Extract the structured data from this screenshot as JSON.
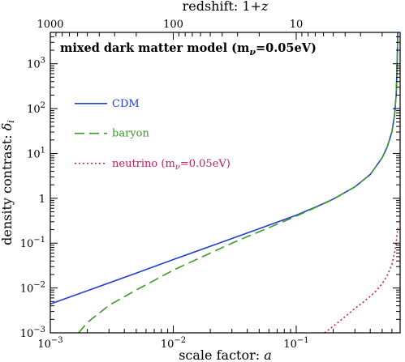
{
  "chart_data": {
    "type": "line",
    "title": "",
    "annotation": "mixed dark matter model (m",
    "annotation_sub": "ν",
    "annotation_tail": "=0.05eV)",
    "xlabel": "scale factor: ",
    "xlabel_var": "a",
    "ylabel": "density contrast: ",
    "ylabel_var": "δ",
    "ylabel_sub": "i",
    "top_xlabel": "redshift: 1+",
    "top_xlabel_var": "z",
    "xscale": "log",
    "yscale": "log",
    "xlim": [
      0.001,
      0.7
    ],
    "ylim": [
      0.001,
      5000
    ],
    "x_ticks": [
      {
        "value": 0.001,
        "base": "10",
        "exp": "−3"
      },
      {
        "value": 0.01,
        "base": "10",
        "exp": "−2"
      },
      {
        "value": 0.1,
        "base": "10",
        "exp": "−1"
      }
    ],
    "y_ticks": [
      {
        "value": 0.001,
        "base": "10",
        "exp": "−3"
      },
      {
        "value": 0.01,
        "base": "10",
        "exp": "−2"
      },
      {
        "value": 0.1,
        "base": "10",
        "exp": "−1"
      },
      {
        "value": 1,
        "base": "1",
        "exp": ""
      },
      {
        "value": 10,
        "base": "10",
        "exp": "1"
      },
      {
        "value": 100,
        "base": "10",
        "exp": "2"
      },
      {
        "value": 1000,
        "base": "10",
        "exp": "3"
      }
    ],
    "top_ticks": [
      {
        "value": 1000,
        "label": "1000"
      },
      {
        "value": 100,
        "label": "100"
      },
      {
        "value": 10,
        "label": "10"
      }
    ],
    "legend_position": "upper-left",
    "series": [
      {
        "name": "CDM",
        "color": "#1f3fd6",
        "style": "solid",
        "x": [
          0.001,
          0.002,
          0.005,
          0.01,
          0.02,
          0.05,
          0.1,
          0.15,
          0.2,
          0.3,
          0.4,
          0.5,
          0.55,
          0.6,
          0.63,
          0.65,
          0.66,
          0.67
        ],
        "y": [
          0.0044,
          0.0087,
          0.0215,
          0.043,
          0.085,
          0.21,
          0.42,
          0.67,
          0.96,
          1.8,
          3.4,
          8.0,
          14,
          30,
          70,
          200,
          700,
          5000
        ]
      },
      {
        "name": "baryon",
        "color": "#3a9a28",
        "style": "dashed",
        "x": [
          0.0017,
          0.002,
          0.003,
          0.005,
          0.01,
          0.02,
          0.03,
          0.05,
          0.1,
          0.15,
          0.2,
          0.3,
          0.4,
          0.5,
          0.55,
          0.6,
          0.63,
          0.65,
          0.66,
          0.67
        ],
        "y": [
          0.001,
          0.0017,
          0.0041,
          0.009,
          0.025,
          0.06,
          0.1,
          0.18,
          0.4,
          0.66,
          0.95,
          1.8,
          3.4,
          8.0,
          14,
          30,
          70,
          200,
          700,
          5000
        ]
      },
      {
        "name": "neutrino (m",
        "name_sub": "ν",
        "name_tail": "=0.05eV)",
        "color": "#c8195a",
        "style": "dotted",
        "x": [
          0.17,
          0.2,
          0.25,
          0.3,
          0.35,
          0.4,
          0.45,
          0.5,
          0.55,
          0.6,
          0.63,
          0.65,
          0.67
        ],
        "y": [
          0.001,
          0.0014,
          0.0023,
          0.0035,
          0.0048,
          0.0065,
          0.0088,
          0.0125,
          0.019,
          0.033,
          0.06,
          0.1,
          0.22
        ]
      }
    ]
  }
}
